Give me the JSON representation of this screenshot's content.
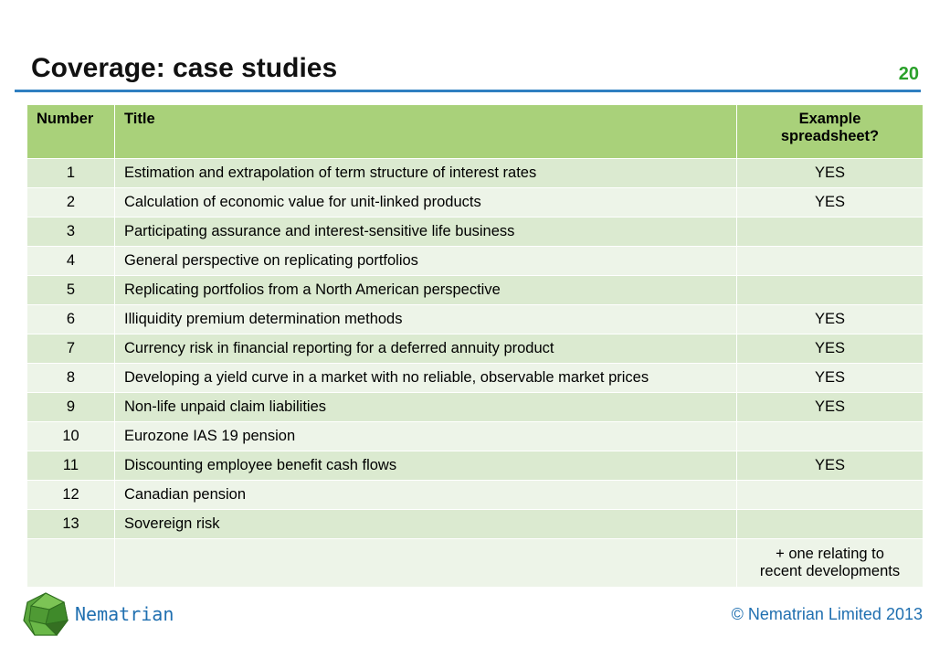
{
  "slide": {
    "title": "Coverage: case studies",
    "page_number": "20"
  },
  "table": {
    "headers": [
      "Number",
      "Title",
      "Example spreadsheet?"
    ],
    "rows": [
      {
        "num": "1",
        "title": "Estimation and extrapolation of term structure of interest rates",
        "example": "YES"
      },
      {
        "num": "2",
        "title": "Calculation of economic value for unit-linked products",
        "example": "YES"
      },
      {
        "num": "3",
        "title": "Participating assurance and interest-sensitive life business",
        "example": ""
      },
      {
        "num": "4",
        "title": "General perspective on replicating portfolios",
        "example": ""
      },
      {
        "num": "5",
        "title": "Replicating portfolios from a North American perspective",
        "example": ""
      },
      {
        "num": "6",
        "title": "Illiquidity premium determination methods",
        "example": "YES"
      },
      {
        "num": "7",
        "title": "Currency risk in financial reporting for a deferred annuity product",
        "example": "YES"
      },
      {
        "num": "8",
        "title": "Developing a yield curve in a market with no reliable, observable market prices",
        "example": "YES"
      },
      {
        "num": "9",
        "title": "Non-life unpaid claim liabilities",
        "example": "YES"
      },
      {
        "num": "10",
        "title": "Eurozone IAS 19 pension",
        "example": ""
      },
      {
        "num": "11",
        "title": "Discounting employee benefit cash flows",
        "example": "YES"
      },
      {
        "num": "12",
        "title": "Canadian pension",
        "example": ""
      },
      {
        "num": "13",
        "title": "Sovereign risk",
        "example": ""
      }
    ],
    "footnote_line1": "+ one relating to",
    "footnote_line2": "recent developments"
  },
  "footer": {
    "brand": "Nematrian",
    "logo_icon": "green-polyhedron-icon",
    "copyright": "© Nematrian Limited 2013"
  }
}
